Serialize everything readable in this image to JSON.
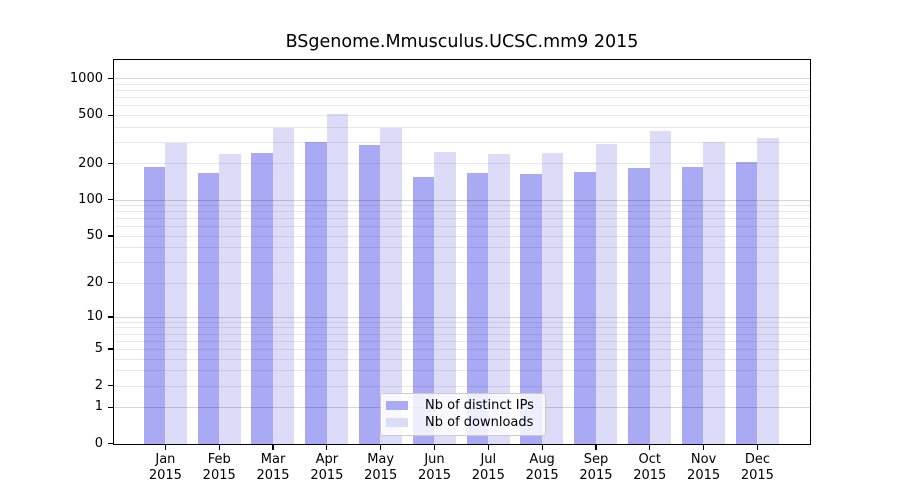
{
  "chart_data": {
    "type": "bar",
    "title": "BSgenome.Mmusculus.UCSC.mm9 2015",
    "year_label": "2015",
    "categories": [
      "Jan",
      "Feb",
      "Mar",
      "Apr",
      "May",
      "Jun",
      "Jul",
      "Aug",
      "Sep",
      "Oct",
      "Nov",
      "Dec"
    ],
    "series": [
      {
        "name": "Nb of distinct IPs",
        "key": "distinct-ips",
        "color": "#a9a9f4",
        "values": [
          189,
          167,
          245,
          304,
          286,
          156,
          168,
          164,
          172,
          184,
          189,
          206
        ]
      },
      {
        "name": "Nb of downloads",
        "key": "downloads",
        "color": "#dcdcf9",
        "values": [
          295,
          240,
          396,
          511,
          397,
          248,
          240,
          246,
          291,
          370,
          302,
          325
        ]
      }
    ],
    "y_scale": "log10(1+x)",
    "y_ticks": [
      1000,
      500,
      200,
      100,
      50,
      20,
      10,
      5,
      2,
      1,
      0
    ],
    "y_major_gridlines": [
      1,
      10,
      100,
      1000
    ],
    "y_minor_gridlines": [
      2,
      3,
      4,
      5,
      6,
      7,
      8,
      9,
      20,
      30,
      40,
      50,
      60,
      70,
      80,
      90,
      200,
      300,
      400,
      500,
      600,
      700,
      800,
      900
    ],
    "ylim": [
      0,
      1440
    ],
    "grid": true,
    "legend_position": "inside-bottom-center",
    "colors": {
      "axis": "#000000",
      "background": "#ffffff",
      "legend_border": "#cccccc"
    }
  }
}
